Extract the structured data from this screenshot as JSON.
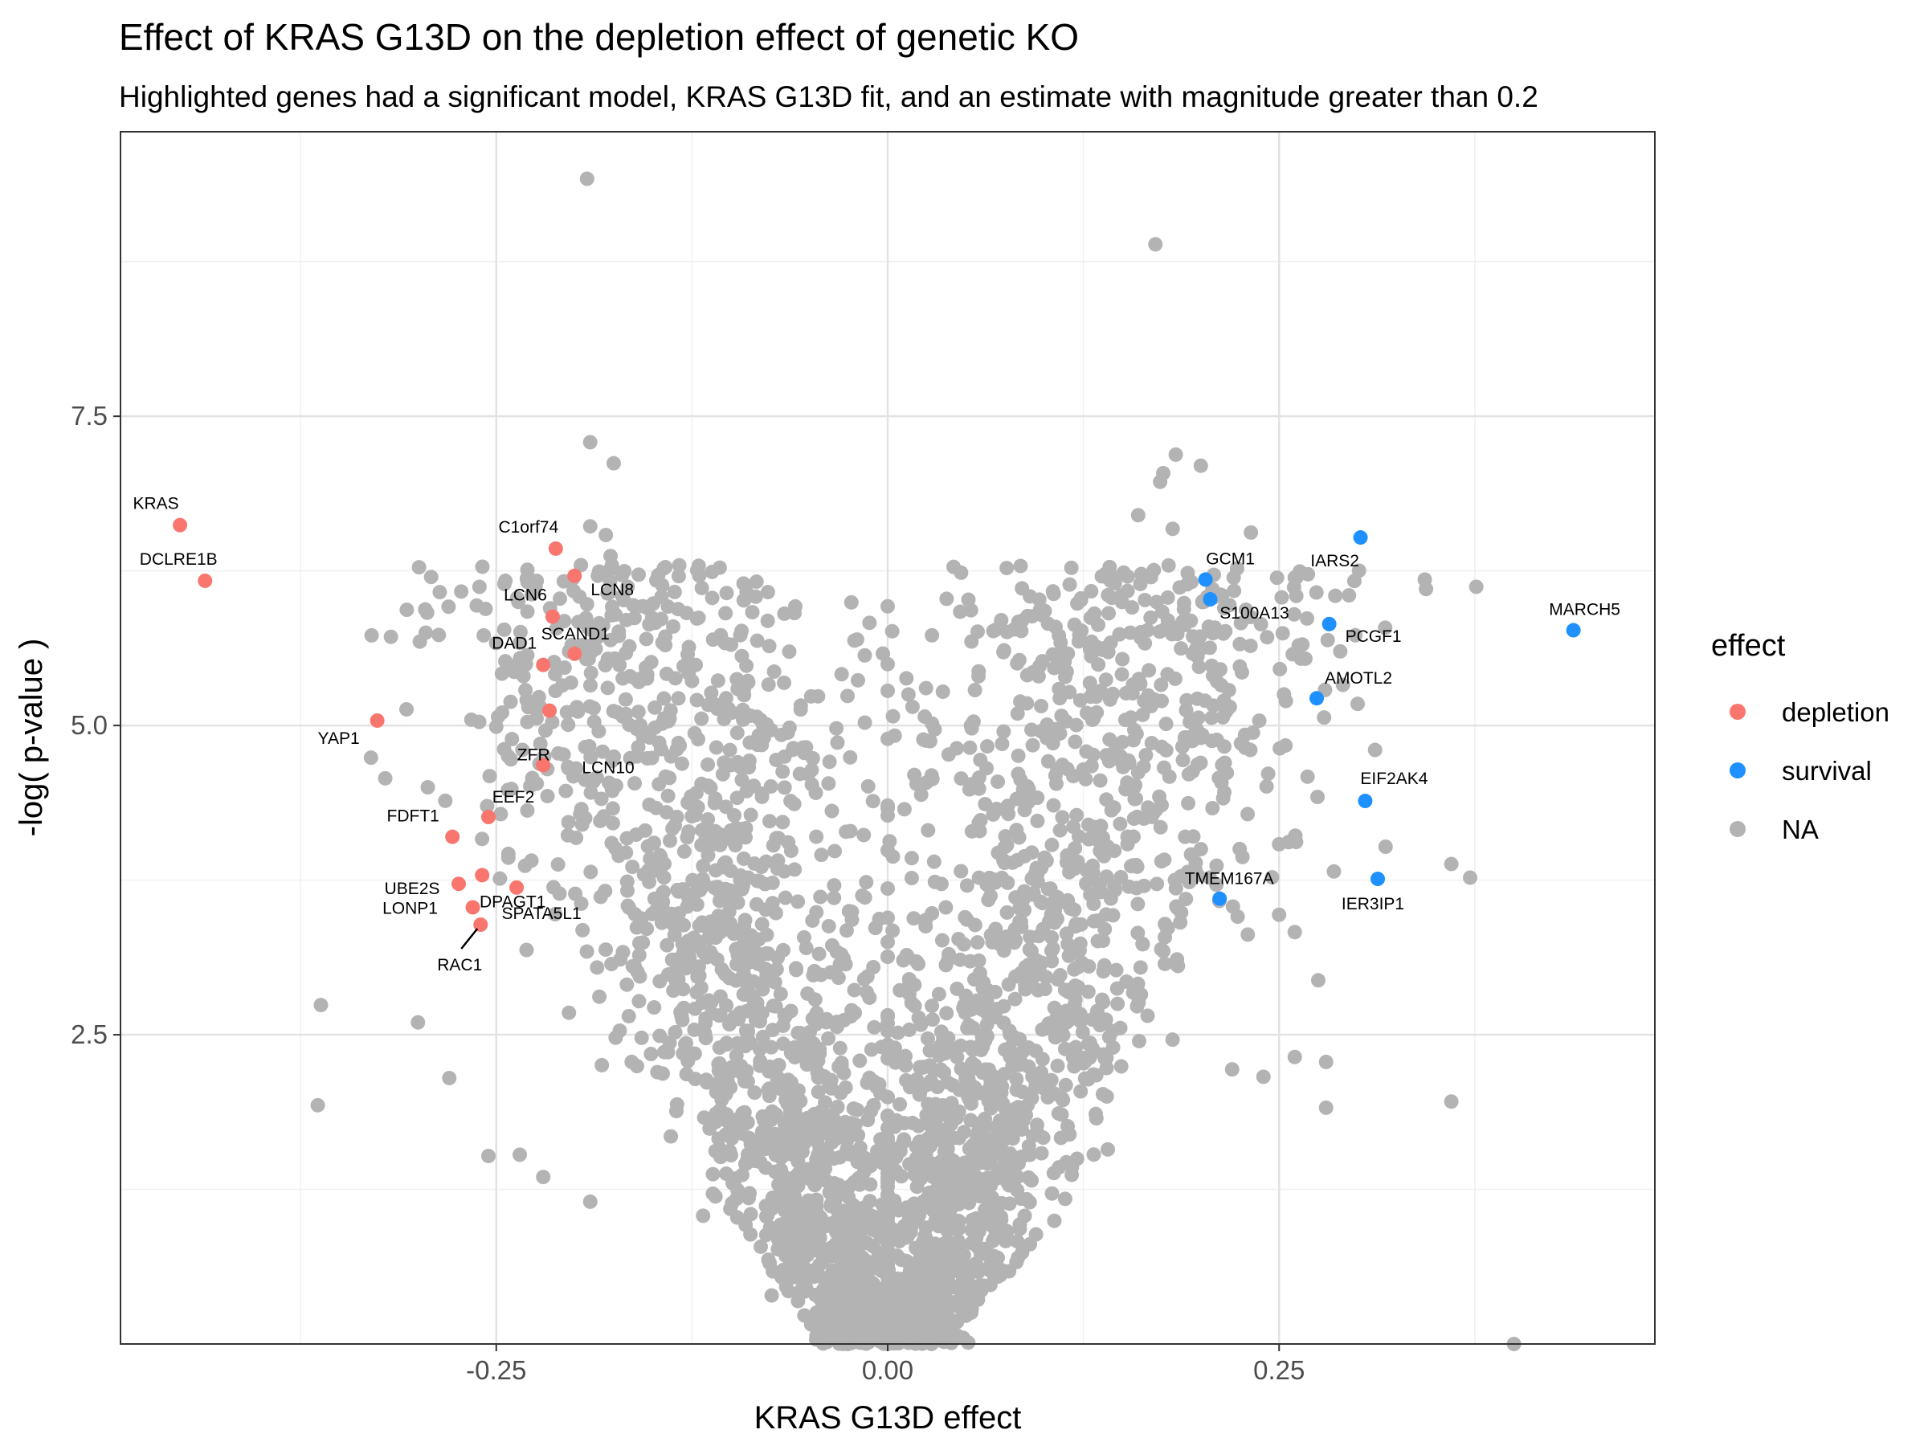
{
  "chart_data": {
    "type": "scatter",
    "title": "Effect of KRAS G13D on the depletion effect of genetic KO",
    "subtitle": "Highlighted genes had a significant model, KRAS G13D fit, and an estimate with magnitude greater than 0.2",
    "xlabel": "KRAS G13D effect",
    "ylabel": "-log( p-value )",
    "xlim": [
      -0.49,
      0.49
    ],
    "ylim": [
      0,
      9.8
    ],
    "xticks": [
      -0.25,
      0.0,
      0.25
    ],
    "xtick_labels": [
      "-0.25",
      "0.00",
      "0.25"
    ],
    "yticks": [
      2.5,
      5.0,
      7.5
    ],
    "ytick_labels": [
      "2.5",
      "5.0",
      "7.5"
    ],
    "grid": true,
    "legend": {
      "title": "effect",
      "position": "right",
      "entries": [
        {
          "name": "depletion",
          "color": "#F8766D"
        },
        {
          "name": "survival",
          "color": "#1E90FF"
        },
        {
          "name": "NA",
          "color": "#B3B3B3"
        }
      ]
    },
    "highlighted": [
      {
        "gene": "KRAS",
        "x": -0.452,
        "y": 6.62,
        "effect": "depletion"
      },
      {
        "gene": "DCLRE1B",
        "x": -0.436,
        "y": 6.17,
        "effect": "depletion"
      },
      {
        "gene": "C1orf74",
        "x": -0.212,
        "y": 6.43,
        "effect": "depletion"
      },
      {
        "gene": "LCN8",
        "x": -0.2,
        "y": 6.21,
        "effect": "depletion"
      },
      {
        "gene": "LCN6",
        "x": -0.214,
        "y": 5.88,
        "effect": "depletion"
      },
      {
        "gene": "SCAND1",
        "x": -0.2,
        "y": 5.58,
        "effect": "depletion"
      },
      {
        "gene": "DAD1",
        "x": -0.22,
        "y": 5.49,
        "effect": "depletion"
      },
      {
        "gene": "LCN10",
        "x": -0.216,
        "y": 5.12,
        "effect": "depletion"
      },
      {
        "gene": "YAP1",
        "x": -0.326,
        "y": 5.04,
        "effect": "depletion"
      },
      {
        "gene": "ZFR",
        "x": -0.22,
        "y": 4.68,
        "effect": "depletion"
      },
      {
        "gene": "EEF2",
        "x": -0.255,
        "y": 4.26,
        "effect": "depletion"
      },
      {
        "gene": "FDFT1",
        "x": -0.278,
        "y": 4.1,
        "effect": "depletion"
      },
      {
        "gene": "DPAGT1",
        "x": -0.259,
        "y": 3.79,
        "effect": "depletion"
      },
      {
        "gene": "UBE2S",
        "x": -0.274,
        "y": 3.72,
        "effect": "depletion"
      },
      {
        "gene": "SPATA5L1",
        "x": -0.237,
        "y": 3.69,
        "effect": "depletion"
      },
      {
        "gene": "LONP1",
        "x": -0.265,
        "y": 3.53,
        "effect": "depletion"
      },
      {
        "gene": "RAC1",
        "x": -0.26,
        "y": 3.39,
        "effect": "depletion"
      },
      {
        "gene": "GCM1",
        "x": 0.203,
        "y": 6.18,
        "effect": "survival"
      },
      {
        "gene": "S100A13",
        "x": 0.206,
        "y": 6.02,
        "effect": "survival"
      },
      {
        "gene": "IARS2",
        "x": 0.302,
        "y": 6.52,
        "effect": "survival"
      },
      {
        "gene": "PCGF1",
        "x": 0.282,
        "y": 5.82,
        "effect": "survival"
      },
      {
        "gene": "MARCH5",
        "x": 0.438,
        "y": 5.77,
        "effect": "survival"
      },
      {
        "gene": "AMOTL2",
        "x": 0.274,
        "y": 5.22,
        "effect": "survival"
      },
      {
        "gene": "EIF2AK4",
        "x": 0.305,
        "y": 4.39,
        "effect": "survival"
      },
      {
        "gene": "IER3IP1",
        "x": 0.313,
        "y": 3.76,
        "effect": "survival"
      },
      {
        "gene": "TMEM167A",
        "x": 0.212,
        "y": 3.6,
        "effect": "survival"
      }
    ],
    "background_points": [
      {
        "x": -0.192,
        "y": 9.42
      },
      {
        "x": 0.171,
        "y": 8.89
      },
      {
        "x": -0.19,
        "y": 7.29
      },
      {
        "x": -0.175,
        "y": 7.12
      },
      {
        "x": 0.184,
        "y": 7.19
      },
      {
        "x": 0.2,
        "y": 7.1
      },
      {
        "x": 0.176,
        "y": 7.04
      },
      {
        "x": 0.174,
        "y": 6.97
      },
      {
        "x": 0.16,
        "y": 6.7
      },
      {
        "x": 0.182,
        "y": 6.59
      },
      {
        "x": 0.232,
        "y": 6.56
      },
      {
        "x": -0.19,
        "y": 6.61
      },
      {
        "x": -0.18,
        "y": 6.54
      },
      {
        "x": -0.177,
        "y": 6.37
      },
      {
        "x": -0.178,
        "y": 6.25
      },
      {
        "x": -0.142,
        "y": 6.28
      },
      {
        "x": -0.176,
        "y": 5.96
      },
      {
        "x": -0.137,
        "y": 5.8
      },
      {
        "x": -0.192,
        "y": 5.64
      },
      {
        "x": -0.165,
        "y": 5.64
      },
      {
        "x": 0.194,
        "y": 6.16
      },
      {
        "x": 0.202,
        "y": 6.0
      },
      {
        "x": 0.179,
        "y": 5.85
      },
      {
        "x": 0.185,
        "y": 5.74
      },
      {
        "x": 0.195,
        "y": 5.72
      },
      {
        "x": 0.155,
        "y": 5.75
      },
      {
        "x": 0.264,
        "y": 5.54
      },
      {
        "x": 0.13,
        "y": 5.56
      },
      {
        "x": -0.222,
        "y": 5.15
      },
      {
        "x": -0.25,
        "y": 4.99
      },
      {
        "x": -0.24,
        "y": 4.89
      },
      {
        "x": -0.33,
        "y": 4.74
      },
      {
        "x": -0.1,
        "y": 4.68
      },
      {
        "x": -0.16,
        "y": 4.75
      },
      {
        "x": 0.19,
        "y": 4.88
      },
      {
        "x": 0.2,
        "y": 4.9
      },
      {
        "x": 0.215,
        "y": 4.83
      },
      {
        "x": 0.16,
        "y": 4.62
      },
      {
        "x": 0.25,
        "y": 4.04
      },
      {
        "x": 0.215,
        "y": 4.46
      },
      {
        "x": 0.19,
        "y": 4.1
      },
      {
        "x": 0.2,
        "y": 4.0
      },
      {
        "x": 0.318,
        "y": 4.02
      },
      {
        "x": 0.36,
        "y": 3.88
      },
      {
        "x": 0.372,
        "y": 3.77
      },
      {
        "x": 0.285,
        "y": 3.82
      },
      {
        "x": 0.25,
        "y": 3.47
      },
      {
        "x": 0.26,
        "y": 3.33
      },
      {
        "x": 0.23,
        "y": 3.31
      },
      {
        "x": 0.275,
        "y": 2.94
      },
      {
        "x": 0.26,
        "y": 2.32
      },
      {
        "x": 0.28,
        "y": 2.28
      },
      {
        "x": 0.28,
        "y": 1.91
      },
      {
        "x": 0.36,
        "y": 1.96
      },
      {
        "x": 0.22,
        "y": 2.22
      },
      {
        "x": 0.24,
        "y": 2.16
      },
      {
        "x": -0.362,
        "y": 2.74
      },
      {
        "x": -0.3,
        "y": 2.6
      },
      {
        "x": -0.364,
        "y": 1.93
      },
      {
        "x": -0.28,
        "y": 2.15
      },
      {
        "x": -0.255,
        "y": 1.52
      },
      {
        "x": -0.235,
        "y": 1.53
      },
      {
        "x": -0.22,
        "y": 1.35
      },
      {
        "x": -0.19,
        "y": 1.15
      },
      {
        "x": 0.4,
        "y": 0.0
      }
    ]
  }
}
